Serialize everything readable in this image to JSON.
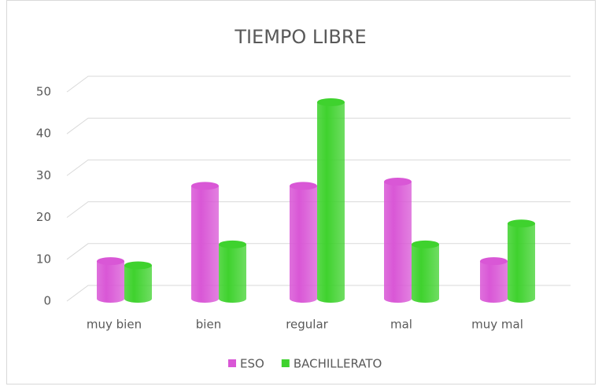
{
  "chart_data": {
    "type": "bar3d",
    "title": "TIEMPO LIBRE",
    "categories": [
      "muy bien",
      "bien",
      "regular",
      "mal",
      "muy mal"
    ],
    "series": [
      {
        "name": "ESO",
        "color": "#d957d6",
        "values": [
          9,
          27,
          27,
          28,
          9
        ]
      },
      {
        "name": "BACHILLERATO",
        "color": "#3fd22e",
        "values": [
          8,
          13,
          47,
          13,
          18
        ]
      }
    ],
    "ylim": [
      0,
      50
    ],
    "yticks": [
      0,
      10,
      20,
      30,
      40,
      50
    ],
    "grid": true,
    "legend": "bottom"
  }
}
